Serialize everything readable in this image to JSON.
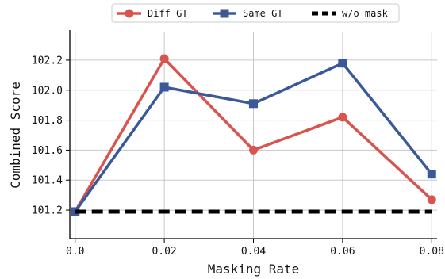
{
  "chart_data": {
    "type": "line",
    "xlabel": "Masking Rate",
    "ylabel": "Combined Score",
    "x": [
      0.0,
      0.02,
      0.04,
      0.06,
      0.08
    ],
    "x_tick_labels": [
      "0.0",
      "0.02",
      "0.04",
      "0.06",
      "0.08"
    ],
    "y_ticks": [
      101.2,
      101.4,
      101.6,
      101.8,
      102.0,
      102.2
    ],
    "y_tick_labels": [
      "101.2",
      "101.4",
      "101.6",
      "101.8",
      "102.0",
      "102.2"
    ],
    "xlim": [
      -0.0012,
      0.0812
    ],
    "ylim": [
      101.01,
      102.39
    ],
    "grid": true,
    "legend_position": "top-center",
    "series": [
      {
        "name": "Diff GT",
        "values": [
          101.19,
          102.21,
          101.6,
          101.82,
          101.27
        ],
        "color": "#d9534f",
        "marker": "circle",
        "line_style": "solid"
      },
      {
        "name": "Same GT",
        "values": [
          101.19,
          102.02,
          101.91,
          102.18,
          101.44
        ],
        "color": "#3b5998",
        "marker": "square",
        "line_style": "solid"
      },
      {
        "name": "w/o mask",
        "values": [
          101.19,
          101.19,
          101.19,
          101.19,
          101.19
        ],
        "color": "#000000",
        "marker": "none",
        "line_style": "dashed"
      }
    ]
  }
}
